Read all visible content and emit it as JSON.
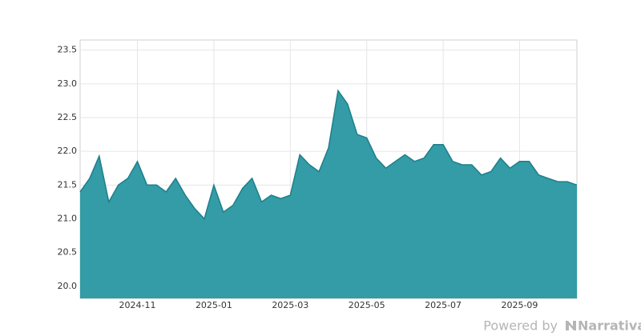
{
  "chart_data": {
    "type": "area",
    "categories": [
      null,
      null,
      null,
      null,
      null,
      null,
      "2024-11",
      null,
      null,
      null,
      null,
      null,
      null,
      null,
      "2025-01",
      null,
      null,
      null,
      null,
      null,
      null,
      null,
      "2025-03",
      null,
      null,
      null,
      null,
      null,
      null,
      null,
      "2025-05",
      null,
      null,
      null,
      null,
      null,
      null,
      null,
      "2025-07",
      null,
      null,
      null,
      null,
      null,
      null,
      null,
      "2025-09",
      null,
      null,
      null,
      null,
      null,
      null
    ],
    "values": [
      21.4,
      21.6,
      21.93,
      21.25,
      21.5,
      21.6,
      21.85,
      21.5,
      21.5,
      21.4,
      21.6,
      21.35,
      21.15,
      21.0,
      21.5,
      21.1,
      21.2,
      21.45,
      21.6,
      21.25,
      21.35,
      21.3,
      21.35,
      21.95,
      21.8,
      21.7,
      22.05,
      22.9,
      22.7,
      22.25,
      22.2,
      21.9,
      21.75,
      21.85,
      21.95,
      21.85,
      21.9,
      22.1,
      22.1,
      21.85,
      21.8,
      21.8,
      21.65,
      21.7,
      21.9,
      21.75,
      21.85,
      21.85,
      21.65,
      21.6,
      21.55,
      21.55,
      21.5
    ],
    "color": "#339ca6",
    "line_color": "#1e7f8a",
    "ylim": [
      19.82,
      23.65
    ],
    "yticks": [
      {
        "value": 20,
        "label": "20.0"
      },
      20.5,
      {
        "value": 21,
        "label": "21.0"
      },
      21.5,
      {
        "value": 22,
        "label": "22.0"
      },
      22.5,
      {
        "value": 23,
        "label": "23.0"
      },
      23.5
    ],
    "grid": true
  },
  "branding": {
    "prefix": "Powered by",
    "brand": "Narrativa"
  }
}
